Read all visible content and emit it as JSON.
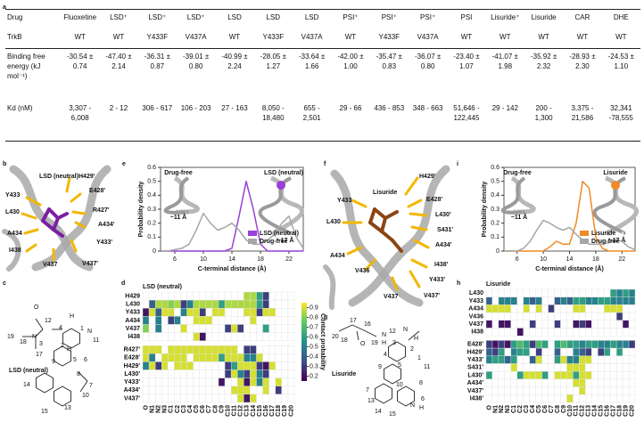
{
  "panel_labels": [
    "a",
    "b",
    "c",
    "d",
    "e",
    "f",
    "g",
    "h",
    "i"
  ],
  "table": {
    "row_headers": [
      "Drug",
      "TrkB",
      "Binding free energy (kJ mol⁻¹)",
      "Kd (nM)"
    ],
    "columns": [
      {
        "drug": "Fluoxetine",
        "trkb": "WT",
        "energy": "-30.54 ± 0.74",
        "kd": "3,307 - 6,008"
      },
      {
        "drug": "LSD⁺",
        "trkb": "WT",
        "energy": "-47.40 ± 2.14",
        "kd": "2 - 12"
      },
      {
        "drug": "LSD⁺",
        "trkb": "Y433F",
        "energy": "-36.31 ± 0.87",
        "kd": "306 - 617"
      },
      {
        "drug": "LSD⁺",
        "trkb": "V437A",
        "energy": "-39.01 ± 0.80",
        "kd": "106 - 203"
      },
      {
        "drug": "LSD",
        "trkb": "WT",
        "energy": "-40.99 ± 2.24",
        "kd": "27 - 163"
      },
      {
        "drug": "LSD",
        "trkb": "Y433F",
        "energy": "-28.05 ± 1.27",
        "kd": "8,050 - 18,480"
      },
      {
        "drug": "LSD",
        "trkb": "V437A",
        "energy": "-33.64 ± 1.66",
        "kd": "655 - 2,501"
      },
      {
        "drug": "PSI⁺",
        "trkb": "WT",
        "energy": "-42.00 ± 1.00",
        "kd": "29 - 66"
      },
      {
        "drug": "PSI⁺",
        "trkb": "Y433F",
        "energy": "-35.47 ± 0.83",
        "kd": "436 - 853"
      },
      {
        "drug": "PSI⁺",
        "trkb": "V437A",
        "energy": "-36.07 ± 0.80",
        "kd": "348 - 663"
      },
      {
        "drug": "PSI",
        "trkb": "WT",
        "energy": "-23.40 ± 1.07",
        "kd": "51,646 - 122,445"
      },
      {
        "drug": "Lisuride⁺",
        "trkb": "WT",
        "energy": "-41.07 ± 1.98",
        "kd": "29 - 142"
      },
      {
        "drug": "Lisuride",
        "trkb": "WT",
        "energy": "-35.92 ± 2.32",
        "kd": "200 - 1,300"
      },
      {
        "drug": "CAR",
        "trkb": "WT",
        "energy": "-28.93 ± 2.30",
        "kd": "3,375 - 21,586"
      },
      {
        "drug": "DHE",
        "trkb": "WT",
        "energy": "-24.53 ± 1.10",
        "kd": "32,341 -78,555"
      }
    ]
  },
  "panel_b": {
    "ligand": "LSD (neutral)",
    "residues": [
      "H429'",
      "E428'",
      "R427'",
      "A434'",
      "Y433'",
      "V437'",
      "V437",
      "I438",
      "A434",
      "L430",
      "Y433"
    ]
  },
  "panel_f": {
    "ligand": "Lisuride",
    "residues": [
      "Y433",
      "L430",
      "H429'",
      "E428'",
      "L430'",
      "S431'",
      "A434'",
      "I438'",
      "Y433'",
      "V437'",
      "V437",
      "V436",
      "A434"
    ]
  },
  "panel_c": {
    "name": "LSD (neutral)",
    "atoms": [
      "O",
      "N",
      "N",
      "H",
      "H",
      "12",
      "3",
      "19",
      "18",
      "17",
      "4",
      "1",
      "11",
      "2",
      "9",
      "5",
      "6",
      "8",
      "7",
      "14",
      "15",
      "13",
      "10"
    ]
  },
  "panel_g": {
    "name": "Lisuride",
    "atoms": [
      "O",
      "N",
      "H",
      "N",
      "H",
      "N",
      "H",
      "20",
      "17",
      "18",
      "16",
      "19",
      "3",
      "12",
      "2",
      "1",
      "11",
      "4",
      "9",
      "5",
      "10",
      "8",
      "6",
      "7",
      "13",
      "14",
      "15"
    ]
  },
  "chart_data": [
    {
      "type": "line",
      "xlabel": "C-terminal distance (Å)",
      "ylabel": "Probability density",
      "x": [
        4,
        5,
        6,
        7,
        8,
        9,
        10,
        11,
        12,
        13,
        14,
        15,
        16,
        17,
        18,
        19,
        20,
        21,
        22,
        23,
        24
      ],
      "xlim": [
        4,
        24
      ],
      "xticks": [
        6,
        10,
        14,
        18,
        22
      ],
      "ylim": [
        0,
        0.6
      ],
      "yticks": [
        0,
        0.1,
        0.2,
        0.3,
        0.4,
        0.5,
        0.6
      ],
      "legend": "lower right",
      "annotations": [
        "Drug-free",
        "LSD (neutral)",
        "~11 Å",
        "~17 Å"
      ],
      "series": [
        {
          "name": "LSD (neutral)",
          "color": "#9b3fd6",
          "values": [
            0,
            0,
            0,
            0,
            0,
            0,
            0,
            0,
            0,
            0,
            0.02,
            0.25,
            0.5,
            0.3,
            0.05,
            0,
            0,
            0,
            0,
            0,
            0
          ]
        },
        {
          "name": "Drug-free",
          "color": "#a6a6a6",
          "values": [
            0,
            0,
            0.01,
            0.02,
            0.05,
            0.15,
            0.27,
            0.2,
            0.15,
            0.17,
            0.2,
            0.15,
            0.08,
            0.05,
            0.05,
            0.08,
            0.12,
            0.2,
            0.25,
            0.1,
            0.02
          ]
        }
      ]
    },
    {
      "type": "heatmap",
      "title": "LSD (neutral)",
      "colormap": "viridis",
      "clim": [
        0.15,
        0.95
      ],
      "colorbar_ticks": [
        0.9,
        0.8,
        0.7,
        0.6,
        0.5,
        0.4,
        0.3,
        0.2
      ],
      "colorbar_label": "Contact probability",
      "rows": [
        "H429",
        "L430",
        "Y433",
        "A434",
        "V437",
        "I438",
        "R427'",
        "E428'",
        "H429'",
        "L430'",
        "Y433'",
        "A434'",
        "V437'"
      ],
      "columns": [
        "O",
        "N1",
        "N2",
        "N3",
        "C1",
        "C2",
        "C3",
        "C4",
        "C5",
        "C6",
        "C7",
        "C8",
        "C9",
        "C10",
        "C11",
        "C12",
        "C13",
        "C14",
        "C15",
        "C16",
        "C17",
        "C18",
        "C19",
        "C20"
      ],
      "values": [
        [
          null,
          null,
          null,
          null,
          null,
          null,
          null,
          null,
          null,
          null,
          null,
          null,
          null,
          null,
          null,
          null,
          0.85,
          0.85,
          0.6,
          0.3,
          null,
          null,
          null,
          null
        ],
        [
          null,
          0.4,
          0.85,
          0.85,
          0.8,
          0.85,
          0.3,
          0.5,
          0.85,
          0.85,
          0.85,
          0.85,
          0.6,
          0.85,
          0.85,
          0.85,
          0.85,
          0.85,
          0.6,
          0.3,
          null,
          null,
          null,
          null
        ],
        [
          0.2,
          0.9,
          0.4,
          0.9,
          0.9,
          null,
          0.5,
          0.9,
          0.9,
          0.3,
          null,
          0.9,
          0.9,
          null,
          null,
          null,
          0.9,
          0.9,
          0.3,
          0.9,
          0.9,
          null,
          null,
          null
        ],
        [
          0.5,
          null,
          0.5,
          null,
          0.3,
          0.5,
          null,
          null,
          0.9,
          0.9,
          0.9,
          null,
          null,
          null,
          null,
          null,
          null,
          0.9,
          null,
          null,
          null,
          null,
          null,
          null
        ],
        [
          0.8,
          null,
          0.5,
          null,
          null,
          null,
          0.9,
          null,
          null,
          null,
          null,
          null,
          null,
          0.3,
          0.9,
          0.3,
          null,
          null,
          null,
          0.6,
          null,
          null,
          null,
          null
        ],
        [
          null,
          null,
          null,
          null,
          null,
          null,
          null,
          null,
          0.9,
          0.2,
          null,
          null,
          null,
          null,
          null,
          null,
          null,
          null,
          null,
          null,
          null,
          null,
          null,
          null
        ],
        [
          0.9,
          0.9,
          0.9,
          null,
          0.9,
          0.9,
          0.9,
          0.9,
          0.9,
          0.9,
          0.9,
          0.9,
          0.9,
          0.9,
          0.9,
          null,
          0.3,
          0.3,
          null,
          null,
          null,
          null,
          null,
          null
        ],
        [
          0.9,
          0.5,
          null,
          0.9,
          0.9,
          0.9,
          0.9,
          null,
          0.9,
          0.9,
          0.9,
          0.9,
          0.6,
          0.9,
          0.9,
          0.9,
          0.5,
          0.5,
          0.9,
          null,
          null,
          null,
          null,
          null
        ],
        [
          0.5,
          0.9,
          0.3,
          0.9,
          null,
          0.9,
          0.9,
          0.9,
          null,
          null,
          null,
          null,
          null,
          0.3,
          0.6,
          0.9,
          0.9,
          0.9,
          0.3,
          0.2,
          0.9,
          null,
          null,
          null
        ],
        [
          null,
          null,
          null,
          null,
          null,
          null,
          null,
          null,
          null,
          null,
          null,
          null,
          null,
          0.3,
          0.9,
          0.5,
          0.3,
          0.9,
          0.5,
          0.3,
          null,
          null,
          null,
          null
        ],
        [
          null,
          null,
          null,
          null,
          null,
          null,
          null,
          null,
          null,
          null,
          null,
          null,
          0.2,
          null,
          null,
          0.9,
          0.2,
          0.9,
          0.5,
          0.9,
          null,
          0.9,
          null,
          null
        ],
        [
          null,
          null,
          null,
          null,
          null,
          null,
          null,
          null,
          null,
          null,
          null,
          null,
          null,
          null,
          0.9,
          0.9,
          0.9,
          null,
          null,
          0.9,
          null,
          0.3,
          null,
          null
        ],
        [
          null,
          null,
          null,
          null,
          null,
          null,
          null,
          null,
          null,
          null,
          null,
          null,
          null,
          null,
          null,
          0.9,
          0.2,
          0.9,
          null,
          null,
          null,
          null,
          null,
          null
        ]
      ]
    },
    {
      "type": "line",
      "xlabel": "C-terminal distance (Å)",
      "ylabel": "Probability density",
      "x": [
        4,
        5,
        6,
        7,
        8,
        9,
        10,
        11,
        12,
        13,
        14,
        15,
        16,
        17,
        18,
        19,
        20,
        21,
        22,
        23,
        24
      ],
      "xlim": [
        4,
        24
      ],
      "xticks": [
        6,
        10,
        14,
        18,
        22
      ],
      "ylim": [
        0,
        0.6
      ],
      "yticks": [
        0,
        0.1,
        0.2,
        0.3,
        0.4,
        0.5,
        0.6
      ],
      "legend": "lower right",
      "annotations": [
        "Drug-free",
        "Lisuride",
        "~11 Å",
        "~17 Å"
      ],
      "series": [
        {
          "name": "Lisuride",
          "color": "#f08a24",
          "values": [
            0,
            0,
            0,
            0,
            0,
            0,
            0,
            0.03,
            0.07,
            0.05,
            0.05,
            0.2,
            0.5,
            0.45,
            0.1,
            0.02,
            0,
            0,
            0,
            0,
            0
          ]
        },
        {
          "name": "Drug-free",
          "color": "#a6a6a6",
          "values": [
            0,
            0,
            0,
            0.02,
            0.07,
            0.15,
            0.22,
            0.2,
            0.17,
            0.15,
            0.17,
            0.12,
            0.08,
            0.05,
            0.05,
            0.05,
            0.06,
            0.08,
            0.07,
            0.03,
            0.01
          ]
        }
      ]
    },
    {
      "type": "heatmap",
      "title": "Lisuride",
      "colormap": "viridis",
      "clim": [
        0.15,
        0.95
      ],
      "rows": [
        "L430",
        "Y433",
        "A434",
        "V436",
        "V437",
        "I438",
        "E428'",
        "H429'",
        "Y433'",
        "S431'",
        "L430'",
        "A434'",
        "V437'",
        "I438'"
      ],
      "columns": [
        "O",
        "N1",
        "N2",
        "N3",
        "C1",
        "C2",
        "C3",
        "C4",
        "C5",
        "C6",
        "C7",
        "C8",
        "C9",
        "C10",
        "C11",
        "C12",
        "C13",
        "C14",
        "C15",
        "C16",
        "C17",
        "C18",
        "C19",
        "C20"
      ],
      "values": [
        [
          null,
          null,
          null,
          null,
          null,
          null,
          null,
          null,
          null,
          null,
          null,
          null,
          null,
          null,
          null,
          null,
          null,
          null,
          null,
          null,
          0.6,
          0.5,
          0.6,
          0.5
        ],
        [
          0.4,
          null,
          0.5,
          0.5,
          0.5,
          null,
          0.5,
          0.4,
          0.5,
          null,
          null,
          0.4,
          0.5,
          0.4,
          0.6,
          0.6,
          0.5,
          0.5,
          0.6,
          0.6,
          0.5,
          0.5,
          0.5,
          0.5
        ],
        [
          0.9,
          0.9,
          0.9,
          0.9,
          null,
          null,
          0.9,
          null,
          0.9,
          null,
          0.3,
          null,
          null,
          null,
          0.9,
          0.9,
          null,
          null,
          null,
          0.9,
          0.9,
          0.9,
          null,
          null
        ],
        [
          null,
          null,
          null,
          null,
          null,
          null,
          null,
          null,
          null,
          null,
          null,
          null,
          null,
          null,
          null,
          null,
          null,
          null,
          null,
          null,
          null,
          0.3,
          null,
          null
        ],
        [
          0.2,
          null,
          0.2,
          0.2,
          null,
          null,
          null,
          0.3,
          null,
          null,
          null,
          0.3,
          null,
          null,
          0.2,
          0.3,
          0.2,
          null,
          null,
          null,
          null,
          null,
          0.2,
          null
        ],
        [
          null,
          null,
          null,
          null,
          null,
          0.2,
          null,
          null,
          null,
          null,
          null,
          null,
          null,
          null,
          null,
          null,
          null,
          null,
          null,
          null,
          null,
          null,
          null,
          null
        ],
        [
          0.3,
          0.2,
          0.3,
          0.2,
          0.6,
          0.7,
          0.6,
          0.3,
          0.7,
          0.6,
          null,
          0.6,
          0.7,
          0.6,
          0.6,
          0.5,
          0.6,
          0.6,
          0.5,
          0.5,
          0.6,
          0.5,
          0.5,
          0.3
        ],
        [
          0.4,
          0.3,
          0.6,
          null,
          0.5,
          0.6,
          0.6,
          null,
          0.3,
          null,
          null,
          0.4,
          null,
          null,
          0.5,
          0.4,
          0.3,
          null,
          0.3,
          0.6,
          null,
          0.6,
          null,
          null
        ],
        [
          0.5,
          0.6,
          0.6,
          0.4,
          0.6,
          null,
          null,
          0.4,
          0.9,
          null,
          null,
          0.6,
          0.9,
          0.5,
          0.5,
          0.9,
          0.9,
          null,
          null,
          null,
          null,
          null,
          null,
          null
        ],
        [
          null,
          null,
          null,
          null,
          0.9,
          null,
          null,
          null,
          null,
          null,
          null,
          null,
          null,
          0.9,
          0.9,
          0.9,
          null,
          null,
          null,
          null,
          null,
          null,
          null,
          null
        ],
        [
          0.6,
          null,
          null,
          null,
          null,
          0.6,
          0.9,
          0.9,
          0.9,
          0.6,
          null,
          0.9,
          0.9,
          0.9,
          0.6,
          0.9,
          0.9,
          null,
          null,
          null,
          null,
          null,
          null,
          null
        ],
        [
          null,
          null,
          null,
          null,
          null,
          null,
          null,
          null,
          null,
          null,
          null,
          null,
          null,
          null,
          0.9,
          0.9,
          null,
          null,
          null,
          null,
          null,
          null,
          null,
          null
        ],
        [
          null,
          null,
          null,
          null,
          null,
          null,
          null,
          null,
          null,
          null,
          null,
          null,
          null,
          null,
          null,
          0.9,
          null,
          null,
          null,
          null,
          null,
          null,
          null,
          null
        ],
        [
          null,
          null,
          null,
          null,
          null,
          null,
          null,
          null,
          null,
          null,
          null,
          null,
          null,
          0.9,
          null,
          null,
          null,
          null,
          null,
          null,
          null,
          null,
          null,
          null
        ]
      ]
    }
  ]
}
